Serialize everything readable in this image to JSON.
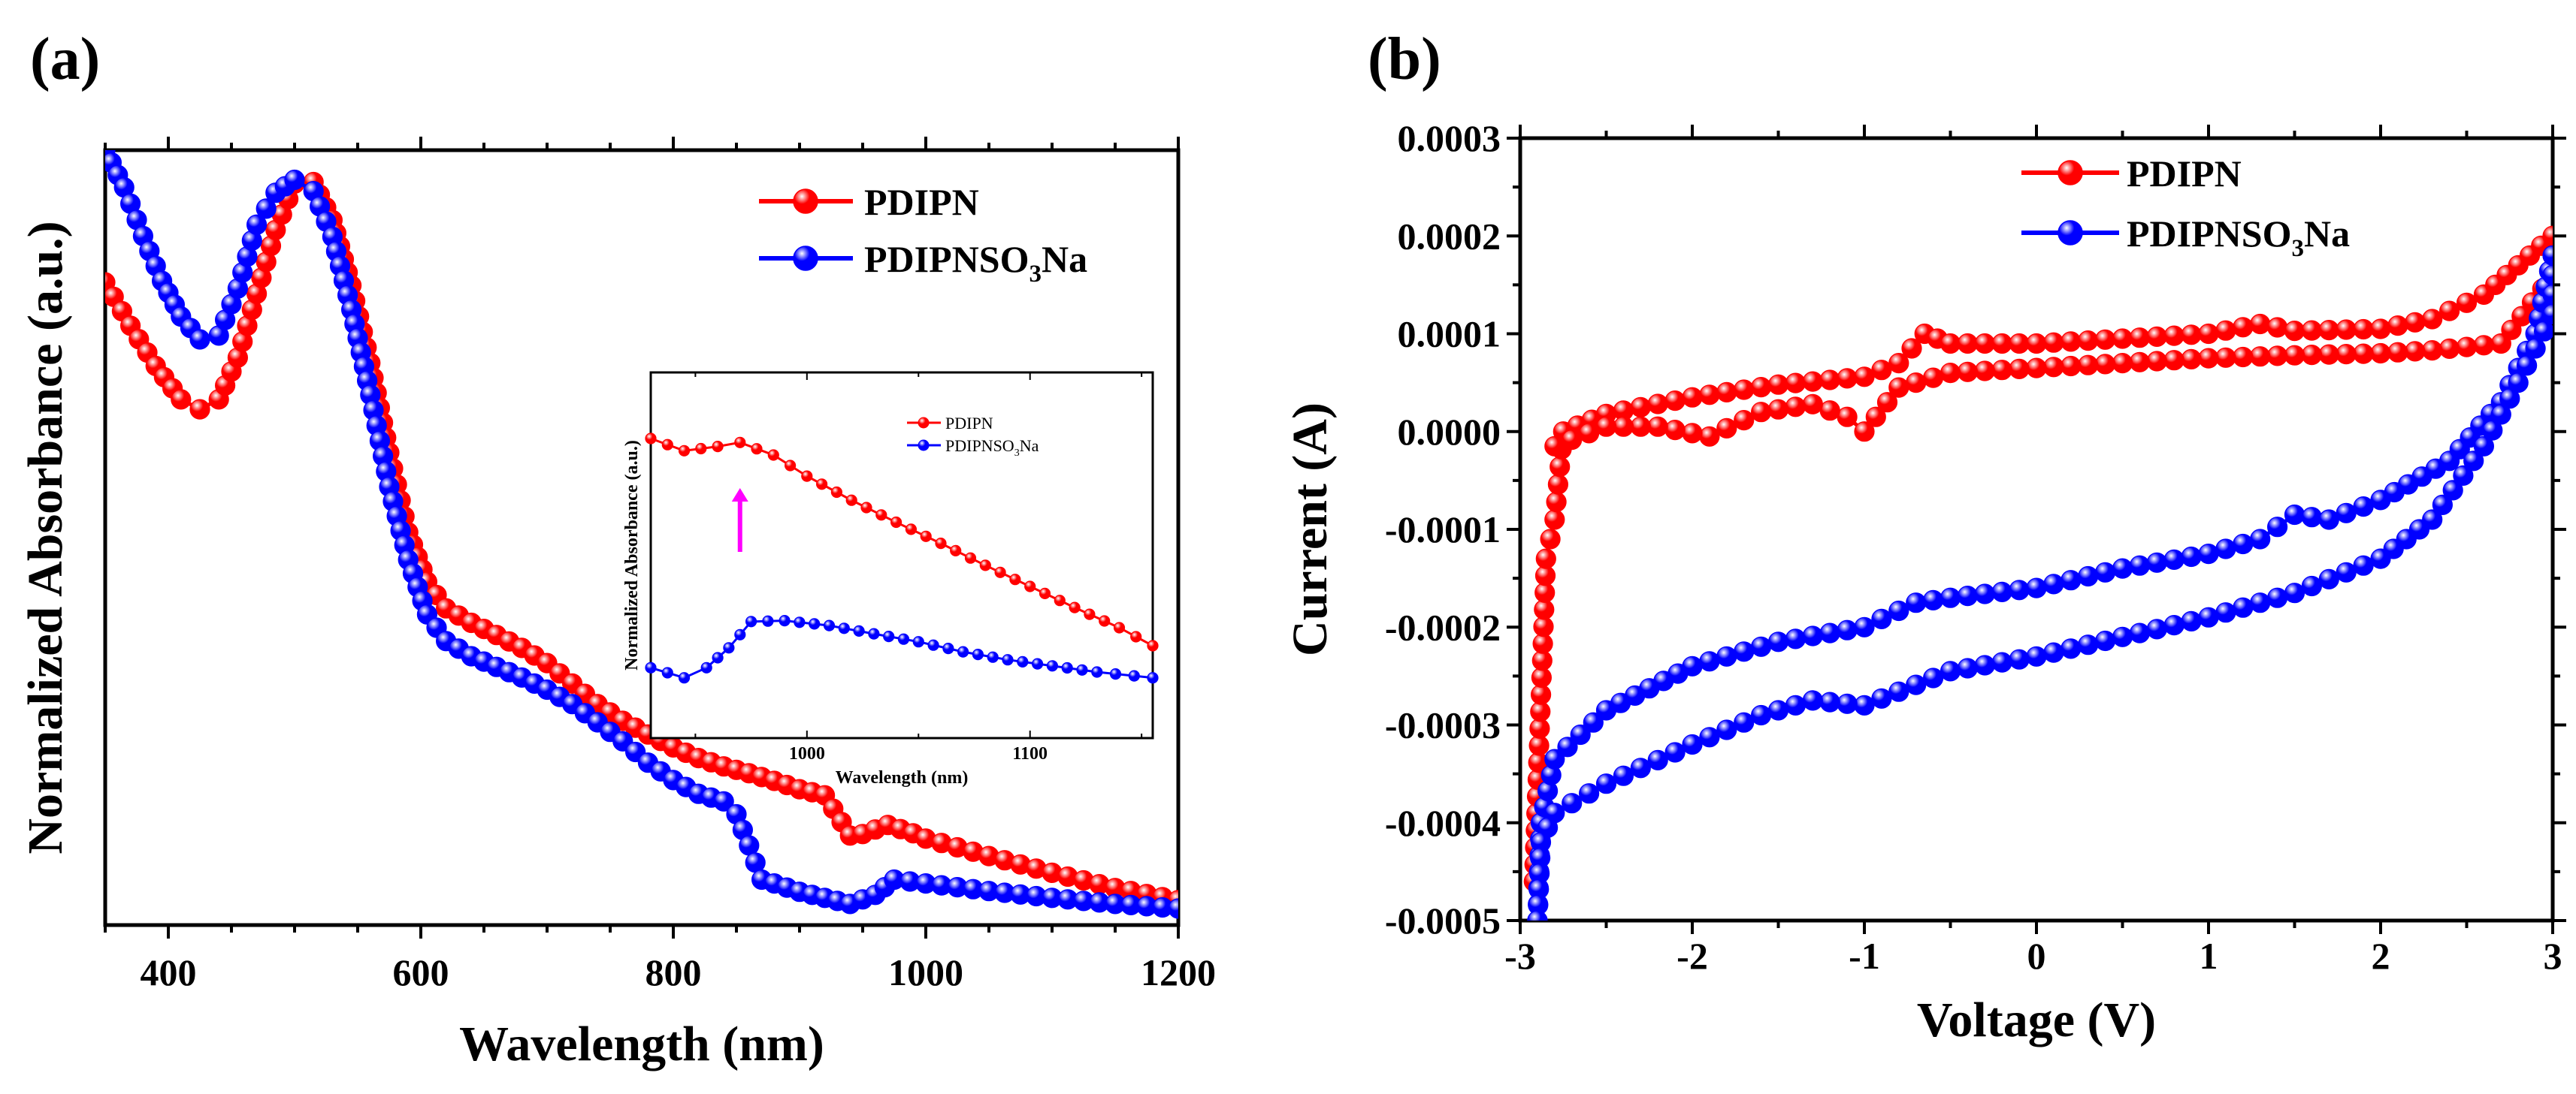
{
  "colors": {
    "series1": "#ff0000",
    "series2": "#0000ff",
    "arrow": "#ff00ff",
    "axis": "#000000"
  },
  "chart_data": [
    {
      "id": "a",
      "panel_label": "(a)",
      "type": "line",
      "xlabel": "Wavelength (nm)",
      "ylabel": "Normalized Absorbance (a.u.)",
      "xlim": [
        350,
        1200
      ],
      "ylim": [
        0,
        1
      ],
      "x_ticks": [
        400,
        600,
        800,
        1000,
        1200
      ],
      "x_tick_labels": [
        "400",
        "600",
        "800",
        "1000",
        "1200"
      ],
      "y_ticks_shown": false,
      "legend_position": "top-right",
      "series": [
        {
          "name": "PDIPN",
          "color_key": "series1",
          "points": [
            [
              350,
              0.826
            ],
            [
              370,
              0.769
            ],
            [
              390,
              0.716
            ],
            [
              410,
              0.672
            ],
            [
              425,
              0.659
            ],
            [
              440,
              0.672
            ],
            [
              455,
              0.727
            ],
            [
              470,
              0.811
            ],
            [
              485,
              0.895
            ],
            [
              500,
              0.956
            ],
            [
              515,
              0.958
            ],
            [
              530,
              0.908
            ],
            [
              545,
              0.822
            ],
            [
              560,
              0.72
            ],
            [
              575,
              0.602
            ],
            [
              590,
              0.497
            ],
            [
              605,
              0.432
            ],
            [
              620,
              0.397
            ],
            [
              640,
              0.378
            ],
            [
              660,
              0.362
            ],
            [
              680,
              0.345
            ],
            [
              700,
              0.325
            ],
            [
              720,
              0.298
            ],
            [
              740,
              0.271
            ],
            [
              760,
              0.249
            ],
            [
              780,
              0.231
            ],
            [
              800,
              0.214
            ],
            [
              820,
              0.2
            ],
            [
              840,
              0.189
            ],
            [
              860,
              0.18
            ],
            [
              880,
              0.17
            ],
            [
              900,
              0.159
            ],
            [
              920,
              0.151
            ],
            [
              940,
              0.098
            ],
            [
              950,
              0.1
            ],
            [
              970,
              0.112
            ],
            [
              990,
              0.101
            ],
            [
              1000,
              0.094
            ],
            [
              1050,
              0.071
            ],
            [
              1100,
              0.049
            ],
            [
              1150,
              0.029
            ],
            [
              1200,
              0.013
            ]
          ]
        },
        {
          "name": "PDIPNSO₃Na",
          "color_key": "series2",
          "points": [
            [
              350,
              1.0
            ],
            [
              365,
              0.951
            ],
            [
              380,
              0.887
            ],
            [
              395,
              0.828
            ],
            [
              410,
              0.781
            ],
            [
              425,
              0.751
            ],
            [
              440,
              0.756
            ],
            [
              455,
              0.818
            ],
            [
              470,
              0.902
            ],
            [
              485,
              0.944
            ],
            [
              500,
              0.961
            ],
            [
              515,
              0.946
            ],
            [
              530,
              0.886
            ],
            [
              545,
              0.79
            ],
            [
              560,
              0.678
            ],
            [
              575,
              0.557
            ],
            [
              590,
              0.461
            ],
            [
              605,
              0.389
            ],
            [
              620,
              0.354
            ],
            [
              640,
              0.334
            ],
            [
              660,
              0.32
            ],
            [
              680,
              0.306
            ],
            [
              700,
              0.29
            ],
            [
              720,
              0.271
            ],
            [
              740,
              0.247
            ],
            [
              760,
              0.222
            ],
            [
              780,
              0.194
            ],
            [
              800,
              0.171
            ],
            [
              820,
              0.153
            ],
            [
              840,
              0.143
            ],
            [
              850,
              0.126
            ],
            [
              860,
              0.085
            ],
            [
              870,
              0.04
            ],
            [
              880,
              0.035
            ],
            [
              900,
              0.024
            ],
            [
              920,
              0.016
            ],
            [
              940,
              0.008
            ],
            [
              960,
              0.02
            ],
            [
              975,
              0.04
            ],
            [
              1000,
              0.035
            ],
            [
              1050,
              0.025
            ],
            [
              1100,
              0.016
            ],
            [
              1150,
              0.008
            ],
            [
              1200,
              0.002
            ]
          ]
        }
      ]
    },
    {
      "id": "inset",
      "type": "line",
      "xlabel": "Wavelength (nm)",
      "ylabel": "Normalized Absorbance (a.u.)",
      "xlim": [
        930,
        1155
      ],
      "ylim": [
        0,
        1
      ],
      "x_ticks": [
        1000,
        1100
      ],
      "x_tick_labels": [
        "1000",
        "1100"
      ],
      "annotation": "upward arrow near 970 nm",
      "legend_position": "top-right",
      "series": [
        {
          "name": "PDIPN",
          "color_key": "series1",
          "points": [
            [
              930,
              0.882
            ],
            [
              945,
              0.842
            ],
            [
              960,
              0.856
            ],
            [
              970,
              0.869
            ],
            [
              985,
              0.828
            ],
            [
              1000,
              0.759
            ],
            [
              1020,
              0.68
            ],
            [
              1040,
              0.608
            ],
            [
              1060,
              0.539
            ],
            [
              1080,
              0.467
            ],
            [
              1100,
              0.398
            ],
            [
              1120,
              0.329
            ],
            [
              1140,
              0.263
            ],
            [
              1155,
              0.204
            ]
          ]
        },
        {
          "name": "PDIPNSO₃Na",
          "color_key": "series2",
          "points": [
            [
              930,
              0.132
            ],
            [
              945,
              0.099
            ],
            [
              955,
              0.132
            ],
            [
              965,
              0.197
            ],
            [
              975,
              0.283
            ],
            [
              990,
              0.286
            ],
            [
              1010,
              0.27
            ],
            [
              1030,
              0.243
            ],
            [
              1050,
              0.217
            ],
            [
              1070,
              0.184
            ],
            [
              1090,
              0.158
            ],
            [
              1110,
              0.138
            ],
            [
              1130,
              0.118
            ],
            [
              1155,
              0.099
            ]
          ]
        }
      ]
    },
    {
      "id": "b",
      "panel_label": "(b)",
      "type": "line",
      "xlabel": "Voltage (V)",
      "ylabel": "Current (A)",
      "xlim": [
        -3,
        3
      ],
      "ylim": [
        -0.0005,
        0.0003
      ],
      "x_ticks": [
        -3,
        -2,
        -1,
        0,
        1,
        2,
        3
      ],
      "x_tick_labels": [
        "-3",
        "-2",
        "-1",
        "0",
        "1",
        "2",
        "3"
      ],
      "y_ticks": [
        -0.0005,
        -0.0004,
        -0.0003,
        -0.0002,
        -0.0001,
        0.0,
        0.0001,
        0.0002,
        0.0003
      ],
      "y_tick_labels": [
        "-0.0005",
        "-0.0004",
        "-0.0003",
        "-0.0002",
        "-0.0001",
        "0.0000",
        "0.0001",
        "0.0002",
        "0.0003"
      ],
      "legend_position": "top-center",
      "series": [
        {
          "name": "PDIPN",
          "color_key": "series1",
          "points": [
            [
              -2.92,
              -0.00046
            ],
            [
              -2.85,
              -0.00013
            ],
            [
              -2.8,
              -9e-05
            ],
            [
              -2.75,
              0.0
            ],
            [
              -2.5,
              1.8e-05
            ],
            [
              -2.0,
              3.5e-05
            ],
            [
              -1.5,
              4.8e-05
            ],
            [
              -1.0,
              5.6e-05
            ],
            [
              -0.8,
              7e-05
            ],
            [
              -0.65,
              0.0001
            ],
            [
              -0.5,
              9e-05
            ],
            [
              0.0,
              9e-05
            ],
            [
              0.5,
              9.5e-05
            ],
            [
              1.0,
              0.0001
            ],
            [
              1.3,
              0.00011
            ],
            [
              1.5,
              0.000103
            ],
            [
              2.0,
              0.000105
            ],
            [
              2.3,
              0.000115
            ],
            [
              2.6,
              0.00014
            ],
            [
              2.8,
              0.00017
            ],
            [
              3.0,
              0.0002
            ],
            [
              3.0,
              0.00016
            ],
            [
              2.7,
              9e-05
            ],
            [
              2.3,
              8.3e-05
            ],
            [
              2.0,
              8e-05
            ],
            [
              1.5,
              7.8e-05
            ],
            [
              1.0,
              7.5e-05
            ],
            [
              0.5,
              7e-05
            ],
            [
              0.0,
              6.5e-05
            ],
            [
              -0.5,
              6e-05
            ],
            [
              -0.8,
              4.5e-05
            ],
            [
              -1.0,
              0.0
            ],
            [
              -1.1,
              1.5e-05
            ],
            [
              -1.3,
              2.8e-05
            ],
            [
              -1.6,
              2e-05
            ],
            [
              -1.9,
              -5e-06
            ],
            [
              -2.2,
              5e-06
            ],
            [
              -2.5,
              5e-06
            ],
            [
              -2.8,
              -1.5e-05
            ]
          ]
        },
        {
          "name": "PDIPNSO₃Na",
          "color_key": "series2",
          "points": [
            [
              -2.9,
              -0.0005
            ],
            [
              -2.88,
              -0.0004
            ],
            [
              -2.8,
              -0.000335
            ],
            [
              -2.5,
              -0.000285
            ],
            [
              -2.0,
              -0.00024
            ],
            [
              -1.5,
              -0.000215
            ],
            [
              -1.0,
              -0.0002
            ],
            [
              -0.7,
              -0.000175
            ],
            [
              -0.5,
              -0.00017
            ],
            [
              0.0,
              -0.00016
            ],
            [
              0.5,
              -0.00014
            ],
            [
              1.0,
              -0.000125
            ],
            [
              1.3,
              -0.00011
            ],
            [
              1.5,
              -8.5e-05
            ],
            [
              1.7,
              -9e-05
            ],
            [
              2.0,
              -7e-05
            ],
            [
              2.4,
              -3e-05
            ],
            [
              2.7,
              3e-05
            ],
            [
              2.9,
              0.0001
            ],
            [
              3.0,
              0.00018
            ],
            [
              3.0,
              0.00012
            ],
            [
              2.8,
              5e-05
            ],
            [
              2.6,
              -1.5e-05
            ],
            [
              2.3,
              -9e-05
            ],
            [
              2.0,
              -0.00013
            ],
            [
              1.5,
              -0.000165
            ],
            [
              1.0,
              -0.00019
            ],
            [
              0.5,
              -0.00021
            ],
            [
              0.0,
              -0.00023
            ],
            [
              -0.5,
              -0.000245
            ],
            [
              -1.0,
              -0.00028
            ],
            [
              -1.3,
              -0.000275
            ],
            [
              -1.6,
              -0.00029
            ],
            [
              -2.0,
              -0.00032
            ],
            [
              -2.5,
              -0.00036
            ],
            [
              -2.8,
              -0.00039
            ],
            [
              -2.88,
              -0.00042
            ],
            [
              -2.9,
              -0.0005
            ]
          ]
        }
      ]
    }
  ]
}
